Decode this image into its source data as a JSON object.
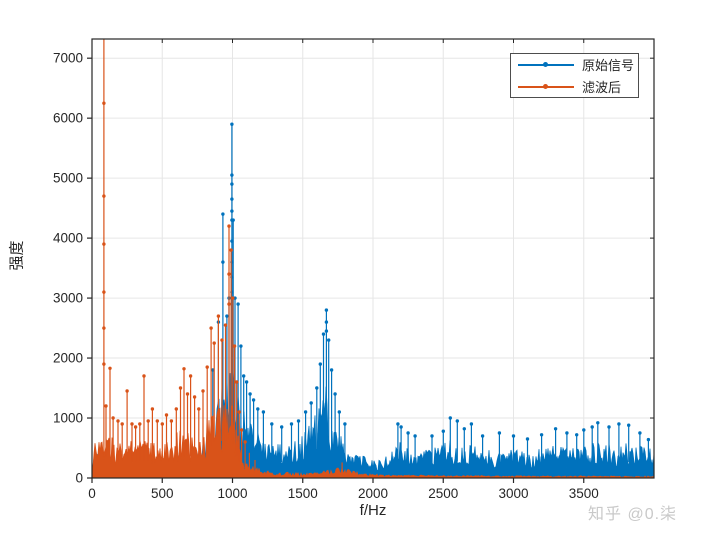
{
  "watermark": "知乎 @0.柒",
  "chart_data": {
    "type": "line",
    "title": "",
    "xlabel": "f/Hz",
    "ylabel": "强度",
    "xlim": [
      0,
      4000
    ],
    "ylim": [
      0,
      7320
    ],
    "xticks": [
      0,
      500,
      1000,
      1500,
      2000,
      2500,
      3000,
      3500
    ],
    "yticks": [
      0,
      1000,
      2000,
      3000,
      4000,
      5000,
      6000,
      7000
    ],
    "grid": true,
    "grid_color": "#e6e6e6",
    "axis_color": "#262626",
    "legend_position": "top-right",
    "series": [
      {
        "name": "原始信号",
        "color": "#0072BD",
        "marker": "dot",
        "base": [
          [
            0,
            420
          ],
          [
            100,
            450
          ],
          [
            200,
            420
          ],
          [
            300,
            400
          ],
          [
            400,
            420
          ],
          [
            500,
            430
          ],
          [
            600,
            450
          ],
          [
            700,
            500
          ],
          [
            750,
            560
          ],
          [
            800,
            700
          ],
          [
            850,
            1000
          ],
          [
            900,
            1500
          ],
          [
            930,
            1900
          ],
          [
            960,
            1750
          ],
          [
            990,
            2100
          ],
          [
            1010,
            1800
          ],
          [
            1030,
            1500
          ],
          [
            1060,
            1300
          ],
          [
            1090,
            1100
          ],
          [
            1130,
            900
          ],
          [
            1180,
            800
          ],
          [
            1250,
            650
          ],
          [
            1320,
            580
          ],
          [
            1400,
            600
          ],
          [
            1450,
            650
          ],
          [
            1500,
            750
          ],
          [
            1550,
            900
          ],
          [
            1600,
            1100
          ],
          [
            1640,
            1400
          ],
          [
            1665,
            1600
          ],
          [
            1690,
            1300
          ],
          [
            1720,
            1000
          ],
          [
            1760,
            800
          ],
          [
            1800,
            620
          ],
          [
            1850,
            480
          ],
          [
            1900,
            400
          ],
          [
            1950,
            350
          ],
          [
            2000,
            330
          ],
          [
            2050,
            300
          ],
          [
            2100,
            380
          ],
          [
            2150,
            500
          ],
          [
            2180,
            650
          ],
          [
            2220,
            550
          ],
          [
            2270,
            450
          ],
          [
            2320,
            430
          ],
          [
            2370,
            480
          ],
          [
            2420,
            500
          ],
          [
            2470,
            520
          ],
          [
            2520,
            600
          ],
          [
            2570,
            650
          ],
          [
            2620,
            580
          ],
          [
            2660,
            520
          ],
          [
            2700,
            560
          ],
          [
            2750,
            500
          ],
          [
            2800,
            480
          ],
          [
            2850,
            460
          ],
          [
            2900,
            500
          ],
          [
            2950,
            470
          ],
          [
            3000,
            480
          ],
          [
            3050,
            450
          ],
          [
            3100,
            480
          ],
          [
            3150,
            500
          ],
          [
            3200,
            520
          ],
          [
            3250,
            500
          ],
          [
            3300,
            560
          ],
          [
            3350,
            520
          ],
          [
            3400,
            540
          ],
          [
            3450,
            520
          ],
          [
            3500,
            560
          ],
          [
            3550,
            580
          ],
          [
            3600,
            620
          ],
          [
            3650,
            580
          ],
          [
            3700,
            600
          ],
          [
            3750,
            620
          ],
          [
            3800,
            600
          ],
          [
            3850,
            580
          ],
          [
            3900,
            540
          ],
          [
            3950,
            500
          ],
          [
            4000,
            480
          ]
        ],
        "peaks": [
          [
            860,
            1800
          ],
          [
            900,
            2600
          ],
          [
            932,
            4400
          ],
          [
            960,
            2700
          ],
          [
            975,
            3000
          ],
          [
            996,
            5900
          ],
          [
            1005,
            4300
          ],
          [
            1018,
            3000
          ],
          [
            1040,
            2900
          ],
          [
            1060,
            2200
          ],
          [
            1080,
            1700
          ],
          [
            1100,
            1600
          ],
          [
            1125,
            1400
          ],
          [
            1150,
            1300
          ],
          [
            1180,
            1150
          ],
          [
            1220,
            1100
          ],
          [
            1280,
            900
          ],
          [
            1350,
            850
          ],
          [
            1420,
            900
          ],
          [
            1470,
            950
          ],
          [
            1520,
            1100
          ],
          [
            1560,
            1250
          ],
          [
            1600,
            1500
          ],
          [
            1625,
            1900
          ],
          [
            1648,
            2400
          ],
          [
            1668,
            2800
          ],
          [
            1685,
            2300
          ],
          [
            1705,
            1800
          ],
          [
            1730,
            1400
          ],
          [
            1760,
            1100
          ],
          [
            1800,
            900
          ],
          [
            2177,
            900
          ],
          [
            2200,
            850
          ],
          [
            2250,
            750
          ],
          [
            2300,
            700
          ],
          [
            2420,
            700
          ],
          [
            2500,
            780
          ],
          [
            2550,
            1000
          ],
          [
            2600,
            950
          ],
          [
            2650,
            820
          ],
          [
            2700,
            900
          ],
          [
            2780,
            700
          ],
          [
            2900,
            750
          ],
          [
            3000,
            700
          ],
          [
            3100,
            650
          ],
          [
            3200,
            720
          ],
          [
            3300,
            820
          ],
          [
            3380,
            750
          ],
          [
            3450,
            720
          ],
          [
            3500,
            800
          ],
          [
            3560,
            850
          ],
          [
            3600,
            920
          ],
          [
            3680,
            850
          ],
          [
            3750,
            900
          ],
          [
            3820,
            880
          ],
          [
            3900,
            750
          ],
          [
            3960,
            640
          ]
        ],
        "extra_markers": [
          [
            996,
            5050
          ],
          [
            996,
            4900
          ],
          [
            996,
            4650
          ],
          [
            996,
            4450
          ],
          [
            996,
            4300
          ],
          [
            996,
            3950
          ],
          [
            996,
            3600
          ],
          [
            996,
            3350
          ],
          [
            996,
            3100
          ],
          [
            1668,
            2600
          ],
          [
            1668,
            2450
          ],
          [
            932,
            3600
          ]
        ]
      },
      {
        "name": "滤波后",
        "color": "#D95319",
        "marker": "dot",
        "base": [
          [
            0,
            500
          ],
          [
            50,
            700
          ],
          [
            90,
            800
          ],
          [
            130,
            750
          ],
          [
            170,
            600
          ],
          [
            210,
            650
          ],
          [
            250,
            700
          ],
          [
            300,
            620
          ],
          [
            350,
            650
          ],
          [
            400,
            640
          ],
          [
            450,
            700
          ],
          [
            500,
            650
          ],
          [
            550,
            700
          ],
          [
            600,
            750
          ],
          [
            650,
            850
          ],
          [
            700,
            800
          ],
          [
            750,
            750
          ],
          [
            800,
            900
          ],
          [
            850,
            1200
          ],
          [
            900,
            1500
          ],
          [
            940,
            1300
          ],
          [
            975,
            1600
          ],
          [
            1000,
            1300
          ],
          [
            1020,
            900
          ],
          [
            1050,
            600
          ],
          [
            1080,
            400
          ],
          [
            1110,
            280
          ],
          [
            1150,
            200
          ],
          [
            1200,
            150
          ],
          [
            1300,
            110
          ],
          [
            1400,
            95
          ],
          [
            1500,
            85
          ],
          [
            1600,
            90
          ],
          [
            1700,
            140
          ],
          [
            1780,
            200
          ],
          [
            1850,
            120
          ],
          [
            1950,
            70
          ],
          [
            2100,
            55
          ],
          [
            2300,
            50
          ],
          [
            2500,
            45
          ],
          [
            2700,
            42
          ],
          [
            2900,
            40
          ],
          [
            3100,
            38
          ],
          [
            3300,
            35
          ],
          [
            3500,
            35
          ],
          [
            3700,
            33
          ],
          [
            4000,
            32
          ]
        ],
        "peaks": [
          [
            85,
            7600
          ],
          [
            100,
            1200
          ],
          [
            128,
            1830
          ],
          [
            150,
            1000
          ],
          [
            185,
            950
          ],
          [
            215,
            900
          ],
          [
            250,
            1450
          ],
          [
            285,
            900
          ],
          [
            310,
            850
          ],
          [
            340,
            900
          ],
          [
            370,
            1700
          ],
          [
            400,
            950
          ],
          [
            430,
            1150
          ],
          [
            465,
            950
          ],
          [
            500,
            900
          ],
          [
            530,
            1050
          ],
          [
            565,
            950
          ],
          [
            600,
            1150
          ],
          [
            630,
            1500
          ],
          [
            655,
            1820
          ],
          [
            680,
            1400
          ],
          [
            702,
            1700
          ],
          [
            730,
            1350
          ],
          [
            760,
            1150
          ],
          [
            790,
            1450
          ],
          [
            820,
            1850
          ],
          [
            848,
            2500
          ],
          [
            870,
            2250
          ],
          [
            900,
            2700
          ],
          [
            925,
            2300
          ],
          [
            950,
            2550
          ],
          [
            975,
            4200
          ],
          [
            990,
            3800
          ],
          [
            1002,
            3000
          ],
          [
            1015,
            2200
          ],
          [
            1030,
            1600
          ],
          [
            1048,
            1100
          ],
          [
            1065,
            800
          ],
          [
            1090,
            600
          ],
          [
            1120,
            420
          ],
          [
            1160,
            300
          ],
          [
            1780,
            260
          ]
        ],
        "extra_markers": [
          [
            85,
            6250
          ],
          [
            85,
            4700
          ],
          [
            85,
            3900
          ],
          [
            85,
            3100
          ],
          [
            85,
            2500
          ],
          [
            85,
            1900
          ],
          [
            975,
            3400
          ],
          [
            975,
            2900
          ]
        ]
      }
    ]
  }
}
